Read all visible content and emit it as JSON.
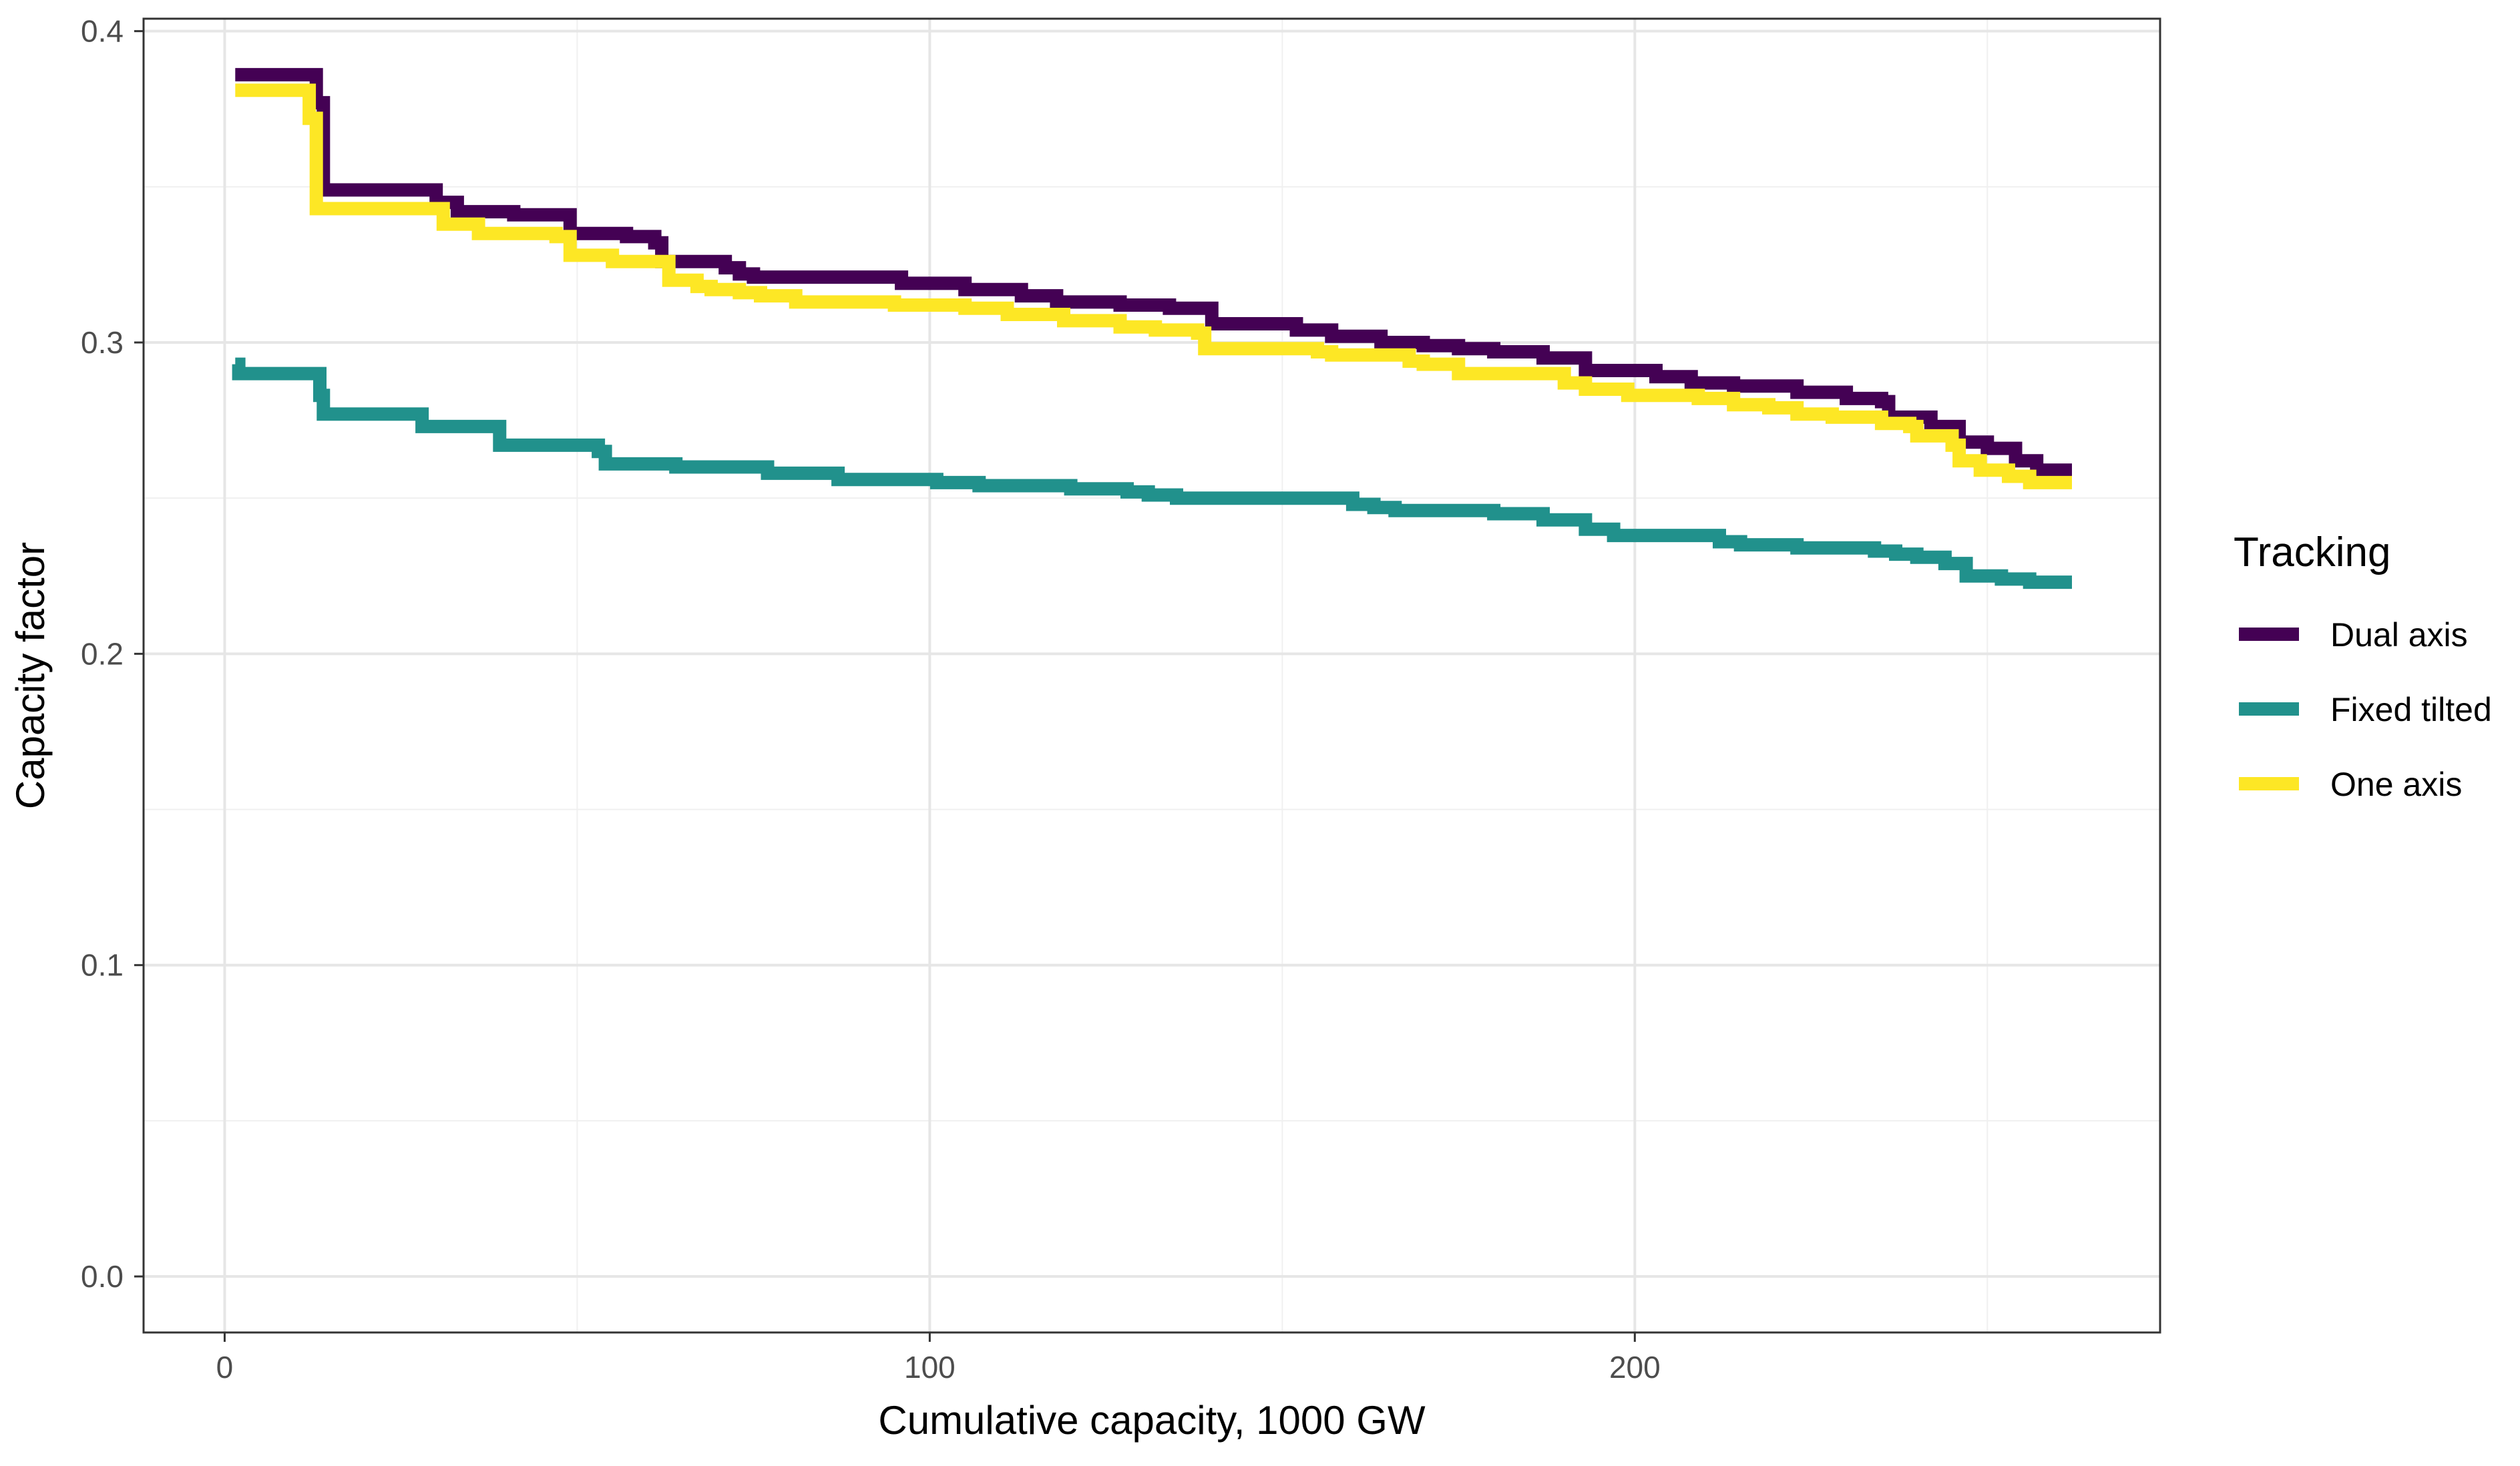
{
  "chart_data": {
    "type": "line",
    "title": "",
    "xlabel": "Cumulative capacity, 1000 GW",
    "ylabel": "Capacity factor",
    "xlim": [
      -11.5,
      274.5
    ],
    "ylim": [
      -0.018,
      0.404
    ],
    "x_ticks": [
      0,
      100,
      200
    ],
    "x_tick_labels": [
      "0",
      "100",
      "200"
    ],
    "y_ticks": [
      0.0,
      0.1,
      0.2,
      0.3,
      0.4
    ],
    "y_tick_labels": [
      "0.0",
      "0.1",
      "0.2",
      "0.3",
      "0.4"
    ],
    "grid": true,
    "legend_title": "Tracking",
    "legend_position": "right",
    "series": [
      {
        "name": "Dual axis",
        "color": "#440154",
        "x": [
          1.5,
          12,
          13,
          14,
          28,
          30,
          33,
          41,
          49,
          57,
          61,
          62,
          71,
          73,
          75,
          96,
          105,
          113,
          118,
          127,
          134,
          135,
          140,
          152,
          157,
          164,
          170,
          175,
          180,
          187,
          193,
          203,
          208,
          214,
          223,
          230,
          235,
          236,
          242,
          246,
          250,
          254,
          257,
          262
        ],
        "y": [
          0.386,
          0.386,
          0.377,
          0.349,
          0.349,
          0.345,
          0.342,
          0.341,
          0.335,
          0.334,
          0.332,
          0.326,
          0.324,
          0.322,
          0.321,
          0.319,
          0.317,
          0.315,
          0.313,
          0.312,
          0.311,
          0.311,
          0.306,
          0.304,
          0.302,
          0.3,
          0.299,
          0.298,
          0.297,
          0.295,
          0.291,
          0.289,
          0.287,
          0.286,
          0.284,
          0.282,
          0.281,
          0.276,
          0.273,
          0.268,
          0.266,
          0.262,
          0.259,
          0.259
        ],
        "last_x": 262
      },
      {
        "name": "Fixed tilted",
        "color": "#21918c",
        "x": [
          1.5,
          2,
          13,
          13.5,
          14,
          27,
          28,
          38,
          39,
          50,
          53,
          54,
          62,
          64,
          75,
          77,
          85,
          87,
          98,
          101,
          103,
          107,
          120,
          128,
          131,
          135,
          155,
          160,
          163,
          166,
          180,
          187,
          193,
          197,
          206,
          212,
          215,
          218,
          223,
          228,
          234,
          237,
          240,
          244,
          247,
          252,
          256,
          262
        ],
        "y": [
          0.293,
          0.29,
          0.29,
          0.283,
          0.277,
          0.277,
          0.273,
          0.273,
          0.267,
          0.267,
          0.265,
          0.261,
          0.261,
          0.26,
          0.26,
          0.258,
          0.258,
          0.256,
          0.256,
          0.255,
          0.255,
          0.254,
          0.253,
          0.252,
          0.251,
          0.25,
          0.25,
          0.248,
          0.247,
          0.246,
          0.245,
          0.243,
          0.24,
          0.238,
          0.238,
          0.236,
          0.235,
          0.235,
          0.234,
          0.234,
          0.233,
          0.232,
          0.231,
          0.229,
          0.225,
          0.224,
          0.223,
          0.223
        ],
        "last_x": 262
      },
      {
        "name": "One axis",
        "color": "#fde725",
        "x": [
          1.5,
          11,
          12,
          13,
          28,
          31,
          36,
          47,
          48,
          49,
          55,
          62,
          63,
          67,
          69,
          72,
          73,
          76,
          81,
          95,
          105,
          111,
          119,
          124,
          127,
          132,
          138,
          139,
          150,
          155,
          157,
          168,
          170,
          175,
          185,
          190,
          193,
          199,
          207,
          209,
          214,
          219,
          223,
          228,
          235,
          239,
          240,
          245,
          246,
          249,
          253,
          256,
          262
        ],
        "y": [
          0.381,
          0.381,
          0.372,
          0.343,
          0.343,
          0.338,
          0.335,
          0.334,
          0.334,
          0.328,
          0.326,
          0.326,
          0.32,
          0.318,
          0.317,
          0.317,
          0.316,
          0.315,
          0.313,
          0.312,
          0.311,
          0.309,
          0.307,
          0.307,
          0.305,
          0.304,
          0.303,
          0.298,
          0.298,
          0.297,
          0.296,
          0.294,
          0.293,
          0.29,
          0.29,
          0.287,
          0.285,
          0.283,
          0.283,
          0.282,
          0.28,
          0.279,
          0.277,
          0.276,
          0.274,
          0.273,
          0.27,
          0.267,
          0.262,
          0.259,
          0.257,
          0.255,
          0.255
        ],
        "last_x": 262
      }
    ]
  }
}
